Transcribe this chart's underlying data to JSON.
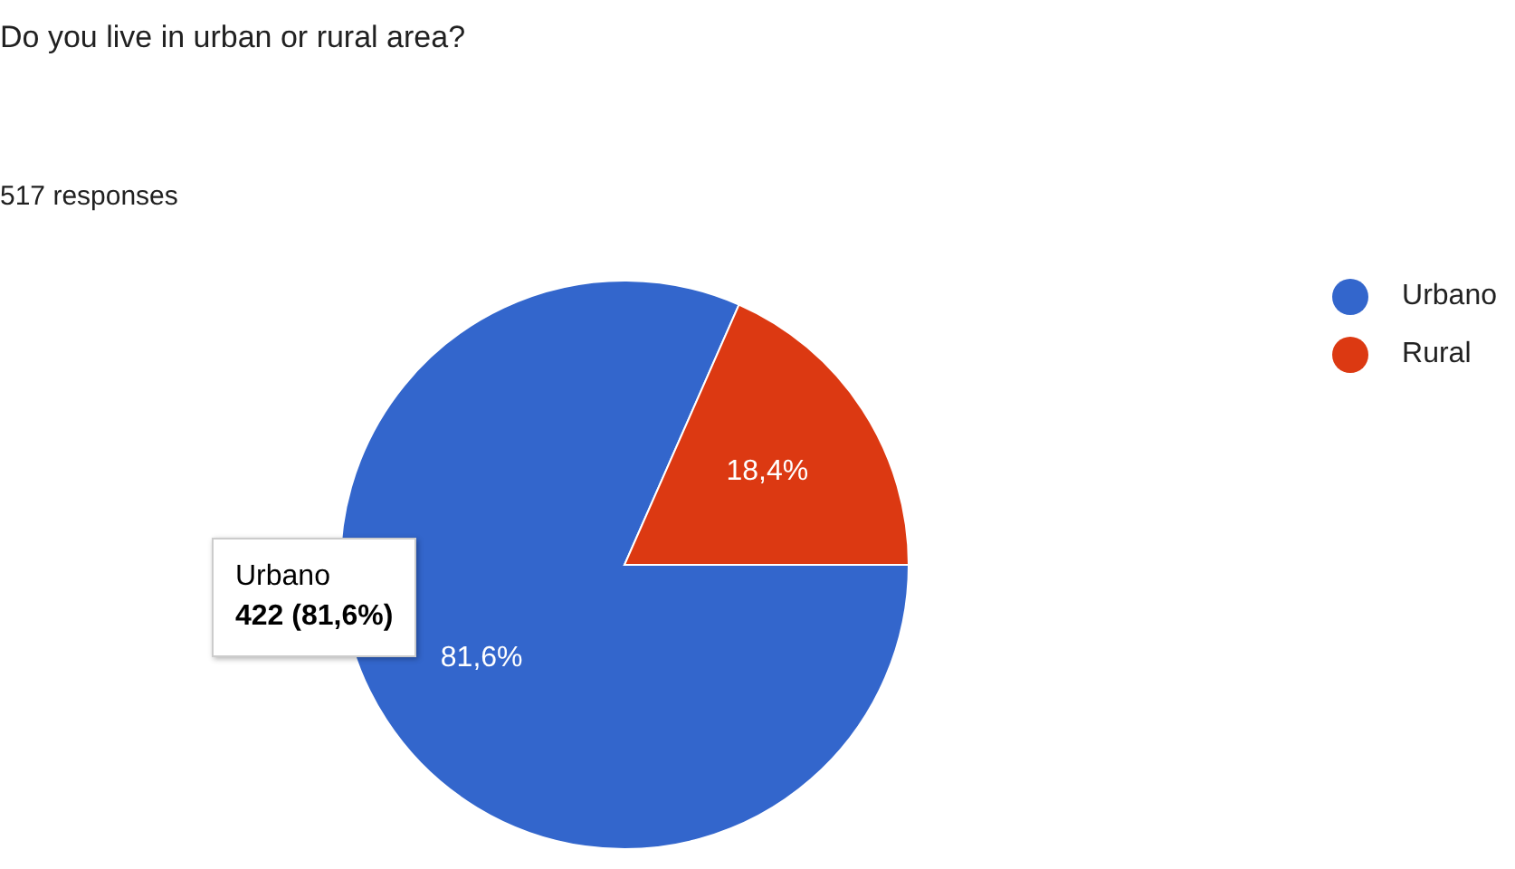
{
  "chart_data": {
    "type": "pie",
    "title": "Do you live in urban or rural area?",
    "subtitle": "517 responses",
    "categories": [
      "Urbano",
      "Rural"
    ],
    "values": [
      81.6,
      18.4
    ],
    "colors": [
      "#3366cc",
      "#dc3912"
    ],
    "value_labels": [
      "81,6%",
      "18,4%"
    ],
    "legend": "top right",
    "annotations": [
      "Urbano\n422 (81,6%)"
    ]
  }
}
